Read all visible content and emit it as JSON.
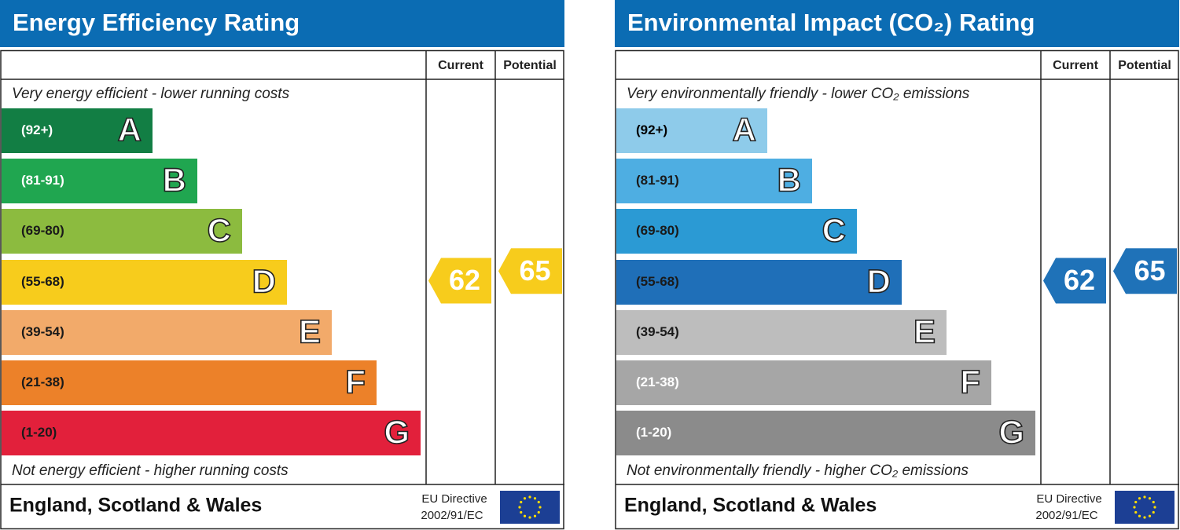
{
  "chart_data": [
    {
      "type": "epc",
      "title": "Energy Efficiency Rating",
      "column_headers": [
        "Current",
        "Potential"
      ],
      "top_note": "Very energy efficient - lower running costs",
      "bottom_note": "Not energy efficient - higher running costs",
      "bands": [
        {
          "range": "(92+)",
          "letter": "A",
          "color": "#127e44",
          "text_color": "#ffffff"
        },
        {
          "range": "(81-91)",
          "letter": "B",
          "color": "#20a650",
          "text_color": "#ffffff"
        },
        {
          "range": "(69-80)",
          "letter": "C",
          "color": "#8cbb3f",
          "text_color": "#1a1a1a"
        },
        {
          "range": "(55-68)",
          "letter": "D",
          "color": "#f7cc1c",
          "text_color": "#1a1a1a"
        },
        {
          "range": "(39-54)",
          "letter": "E",
          "color": "#f2aa6a",
          "text_color": "#1a1a1a"
        },
        {
          "range": "(21-38)",
          "letter": "F",
          "color": "#ec8129",
          "text_color": "#1a1a1a"
        },
        {
          "range": "(1-20)",
          "letter": "G",
          "color": "#e2203b",
          "text_color": "#1a1a1a"
        }
      ],
      "current": 62,
      "potential": 65,
      "arrow_color": "#f7cc1c",
      "footer": "England, Scotland & Wales",
      "directive": [
        "EU Directive",
        "2002/91/EC"
      ]
    },
    {
      "type": "epc",
      "title": "Environmental Impact (CO₂) Rating",
      "column_headers": [
        "Current",
        "Potential"
      ],
      "top_note": "Very environmentally friendly - lower CO₂ emissions",
      "bottom_note": "Not environmentally friendly - higher CO₂ emissions",
      "bands": [
        {
          "range": "(92+)",
          "letter": "A",
          "color": "#8ecbea",
          "text_color": "#000000"
        },
        {
          "range": "(81-91)",
          "letter": "B",
          "color": "#4eaee2",
          "text_color": "#1a1a1a"
        },
        {
          "range": "(69-80)",
          "letter": "C",
          "color": "#2b9ad4",
          "text_color": "#1a1a1a"
        },
        {
          "range": "(55-68)",
          "letter": "D",
          "color": "#1f6fb8",
          "text_color": "#1a1a1a"
        },
        {
          "range": "(39-54)",
          "letter": "E",
          "color": "#bdbdbd",
          "text_color": "#1a1a1a"
        },
        {
          "range": "(21-38)",
          "letter": "F",
          "color": "#a6a6a6",
          "text_color": "#ffffff"
        },
        {
          "range": "(1-20)",
          "letter": "G",
          "color": "#8b8b8b",
          "text_color": "#ffffff"
        }
      ],
      "current": 62,
      "potential": 65,
      "arrow_color": "#1f72b8",
      "footer": "England, Scotland & Wales",
      "directive": [
        "EU Directive",
        "2002/91/EC"
      ]
    }
  ]
}
